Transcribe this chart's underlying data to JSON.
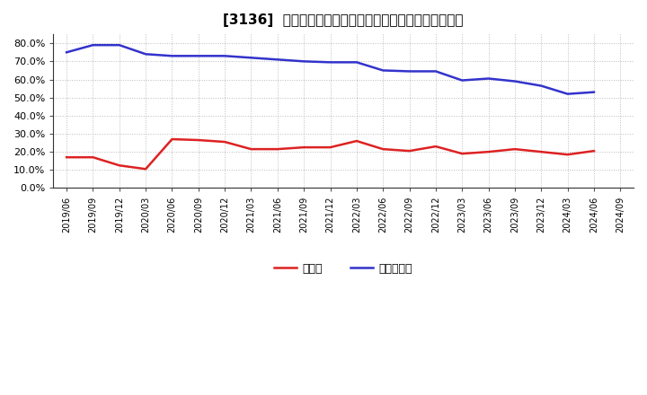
{
  "title": "[3136]  現預金、有利子負債の総資産に対する比率の推移",
  "ylim": [
    0.0,
    0.85
  ],
  "yticks": [
    0.0,
    0.1,
    0.2,
    0.3,
    0.4,
    0.5,
    0.6,
    0.7,
    0.8
  ],
  "background_color": "#ffffff",
  "grid_color": "#aaaaaa",
  "dates": [
    "2019/06",
    "2019/09",
    "2019/12",
    "2020/03",
    "2020/06",
    "2020/09",
    "2020/12",
    "2021/03",
    "2021/06",
    "2021/09",
    "2021/12",
    "2022/03",
    "2022/06",
    "2022/09",
    "2022/12",
    "2023/03",
    "2023/06",
    "2023/09",
    "2023/12",
    "2024/03",
    "2024/06",
    "2024/09"
  ],
  "cash": [
    0.17,
    0.17,
    0.125,
    0.105,
    0.27,
    0.265,
    0.255,
    0.215,
    0.215,
    0.225,
    0.225,
    0.26,
    0.215,
    0.205,
    0.23,
    0.19,
    0.2,
    0.215,
    0.2,
    0.185,
    0.205,
    null
  ],
  "debt": [
    0.75,
    0.79,
    0.79,
    0.74,
    0.73,
    0.73,
    0.73,
    0.72,
    0.71,
    0.7,
    0.695,
    0.695,
    0.65,
    0.645,
    0.645,
    0.595,
    0.605,
    0.59,
    0.565,
    0.52,
    0.53,
    null
  ],
  "cash_color": "#dd2222",
  "debt_color": "#3333cc",
  "legend_cash": "現預金",
  "legend_debt": "有利子負債",
  "title_fontsize": 11,
  "tick_fontsize": 8,
  "xtick_fontsize": 7,
  "legend_fontsize": 9,
  "linewidth": 1.8
}
